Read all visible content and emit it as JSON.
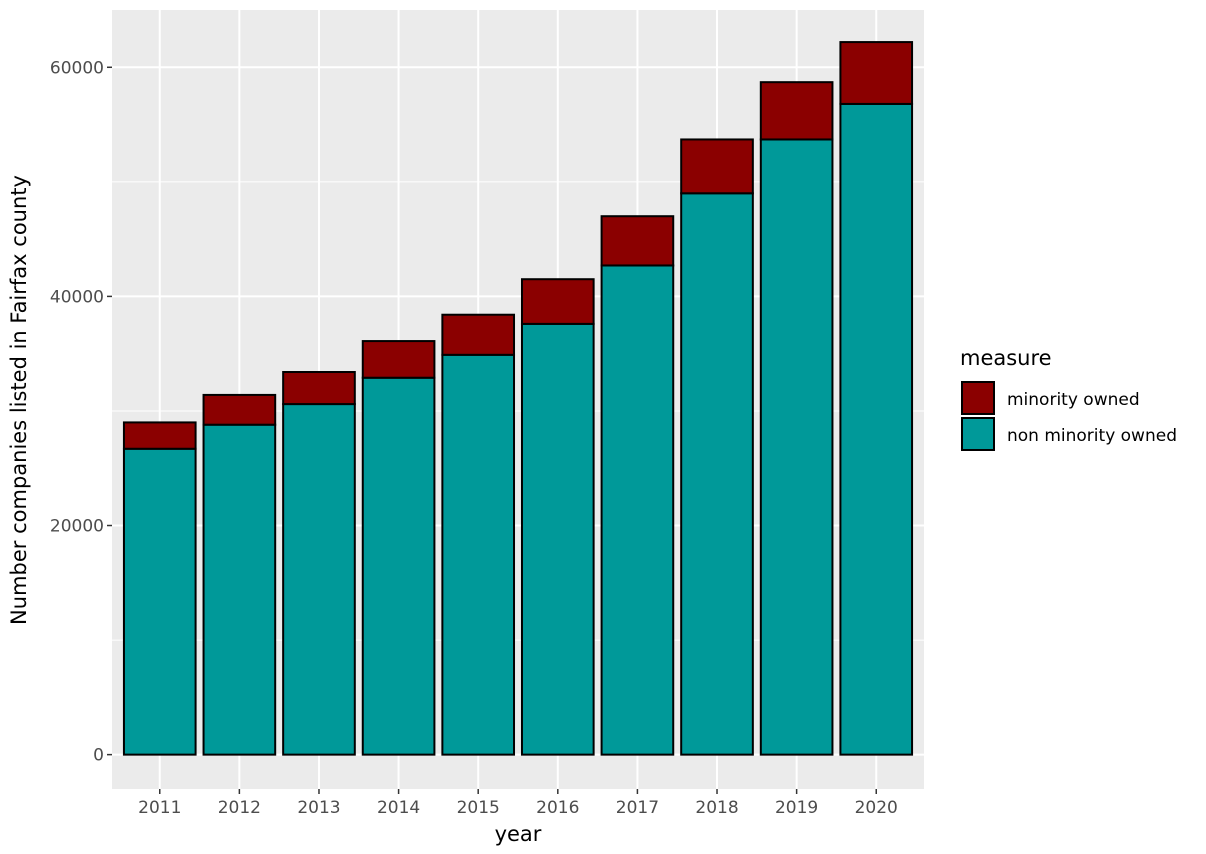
{
  "chart_data": {
    "type": "bar",
    "stacked": true,
    "title": "",
    "xlabel": "year",
    "ylabel": "Number companies listed in Fairfax county",
    "categories": [
      "2011",
      "2012",
      "2013",
      "2014",
      "2015",
      "2016",
      "2017",
      "2018",
      "2019",
      "2020"
    ],
    "series": [
      {
        "name": "non minority owned",
        "color": "#009999",
        "values": [
          26700,
          28800,
          30600,
          32900,
          34900,
          37600,
          42700,
          49000,
          53700,
          56800
        ]
      },
      {
        "name": "minority owned",
        "color": "#8b0000",
        "values": [
          2300,
          2600,
          2800,
          3200,
          3500,
          3900,
          4300,
          4700,
          5000,
          5400
        ]
      }
    ],
    "ylim": [
      -3000,
      65000
    ],
    "yticks": [
      0,
      20000,
      40000,
      60000
    ],
    "ytick_labels": [
      "0",
      "20000",
      "40000",
      "60000"
    ],
    "grid": true,
    "panel_background": "#ebebeb",
    "legend": {
      "title": "measure",
      "placement": "right",
      "order": [
        "minority owned",
        "non minority owned"
      ]
    }
  }
}
